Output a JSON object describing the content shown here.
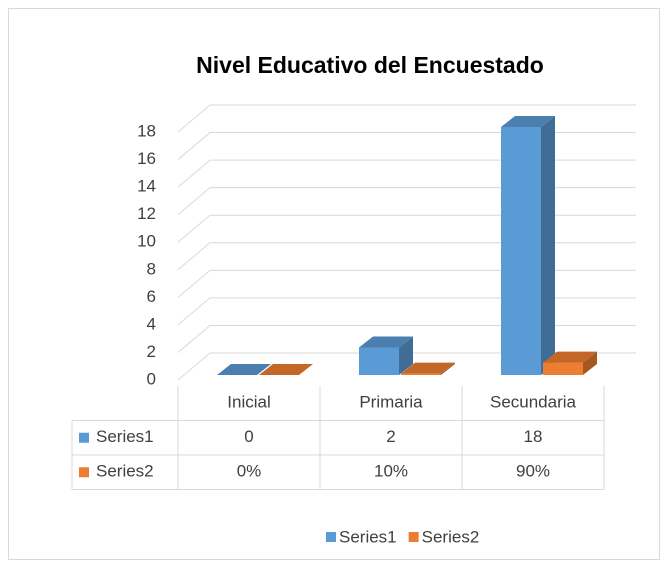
{
  "chart_data": {
    "type": "bar3d",
    "title": "Nivel Educativo del Encuestado",
    "categories": [
      "Inicial",
      "Primaria",
      "Secundaria"
    ],
    "series": [
      {
        "name": "Series1",
        "color": "#5b9bd5",
        "values": [
          0,
          2,
          18
        ]
      },
      {
        "name": "Series2",
        "color": "#ed7d31",
        "values": [
          0,
          0.1,
          0.9
        ],
        "value_labels": [
          "0%",
          "10%",
          "90%"
        ]
      }
    ],
    "ylim": [
      0,
      18
    ],
    "yticks": [
      0,
      2,
      4,
      6,
      8,
      10,
      12,
      14,
      16,
      18
    ],
    "grid": true,
    "legend": "bottom",
    "data_table": true
  }
}
